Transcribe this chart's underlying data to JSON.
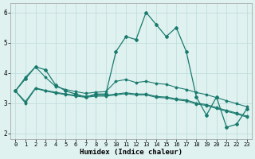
{
  "xlabel": "Humidex (Indice chaleur)",
  "x_values": [
    0,
    1,
    2,
    3,
    4,
    5,
    6,
    7,
    8,
    9,
    10,
    11,
    12,
    13,
    14,
    15,
    16,
    17,
    18,
    19,
    20,
    21,
    22,
    23
  ],
  "line1": [
    3.4,
    3.8,
    4.2,
    4.1,
    3.6,
    3.4,
    3.3,
    3.2,
    3.3,
    3.3,
    4.7,
    5.2,
    5.1,
    6.0,
    5.6,
    5.2,
    5.5,
    4.7,
    3.2,
    2.6,
    3.2,
    2.2,
    2.3,
    2.8
  ],
  "line2": [
    3.4,
    3.85,
    4.2,
    3.85,
    3.55,
    3.45,
    3.38,
    3.32,
    3.36,
    3.38,
    3.72,
    3.78,
    3.68,
    3.72,
    3.65,
    3.62,
    3.52,
    3.45,
    3.35,
    3.28,
    3.18,
    3.08,
    2.98,
    2.88
  ],
  "line3": [
    3.4,
    3.05,
    3.5,
    3.42,
    3.36,
    3.3,
    3.26,
    3.22,
    3.26,
    3.26,
    3.3,
    3.34,
    3.3,
    3.3,
    3.22,
    3.2,
    3.14,
    3.1,
    3.0,
    2.95,
    2.85,
    2.76,
    2.67,
    2.57
  ],
  "line4": [
    3.4,
    3.0,
    3.48,
    3.4,
    3.33,
    3.28,
    3.23,
    3.19,
    3.23,
    3.23,
    3.27,
    3.31,
    3.27,
    3.27,
    3.19,
    3.17,
    3.11,
    3.07,
    2.97,
    2.92,
    2.82,
    2.73,
    2.64,
    2.54
  ],
  "bg_color": "#dff2f0",
  "grid_color": "#c0dedd",
  "line_color": "#1a7a6e",
  "ylim": [
    1.8,
    6.3
  ],
  "yticks": [
    2,
    3,
    4,
    5,
    6
  ],
  "xticks": [
    0,
    1,
    2,
    3,
    4,
    5,
    6,
    7,
    8,
    9,
    10,
    11,
    12,
    13,
    14,
    15,
    16,
    17,
    18,
    19,
    20,
    21,
    22,
    23
  ]
}
